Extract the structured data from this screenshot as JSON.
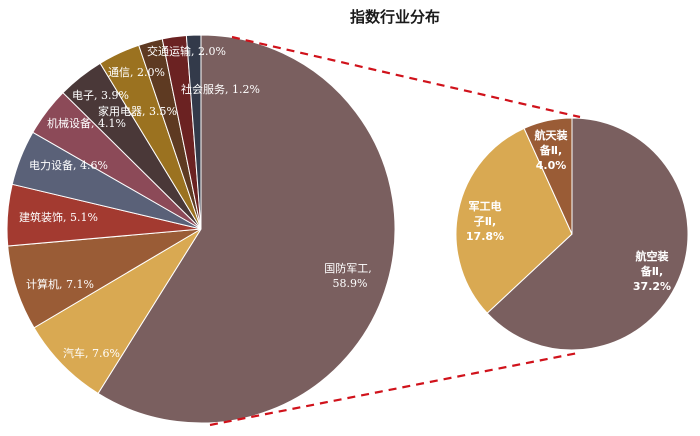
{
  "chart_data": {
    "type": "pie",
    "title": "指数行业分布",
    "main_pie": {
      "categories": [
        "国防军工",
        "汽车",
        "计算机",
        "建筑装饰",
        "电力设备",
        "机械设备",
        "电子",
        "家用电器",
        "通信",
        "交通运输",
        "社会服务"
      ],
      "values": [
        58.9,
        7.6,
        7.1,
        5.1,
        4.6,
        4.1,
        3.9,
        3.5,
        2.0,
        2.0,
        1.2
      ],
      "labels": [
        "国防军工,\n58.9%",
        "汽车, 7.6%",
        "计算机, 7.1%",
        "建筑装饰, 5.1%",
        "电力设备, 4.6%",
        "机械设备, 4.1%",
        "电子, 3.9%",
        "家用电器, 3.5%",
        "通信, 2.0%",
        "交通运输, 2.0%",
        "社会服务, 1.2%"
      ],
      "colors": [
        "#7a5f5f",
        "#d9a952",
        "#9a5c36",
        "#a33a30",
        "#5a6178",
        "#8c4a58",
        "#4a3838",
        "#9b7220",
        "#5e3a22",
        "#6b2222",
        "#333a4a"
      ]
    },
    "sub_pie": {
      "parent": "国防军工",
      "categories": [
        "航空装备Ⅱ",
        "军工电子Ⅱ",
        "航天装备Ⅱ"
      ],
      "values": [
        37.2,
        17.8,
        4.0
      ],
      "labels": [
        "航空装备Ⅱ, 37.2%",
        "军工电子Ⅱ, 17.8%",
        "航天装备Ⅱ, 4.0%"
      ],
      "colors": [
        "#7a5f5f",
        "#d9a952",
        "#9a5c36"
      ]
    },
    "connector_color": "#d0121b",
    "legend": "none"
  },
  "title": "指数行业分布",
  "labels": {
    "gfjg_1": "国防军工,",
    "gfjg_2": "58.9%",
    "qc": "汽车, 7.6%",
    "jsj": "计算机, 7.1%",
    "jzzs": "建筑装饰, 5.1%",
    "dlsb": "电力设备, 4.6%",
    "jxsb": "机械设备, 4.1%",
    "dz": "电子, 3.9%",
    "jydq": "家用电器, 3.5%",
    "tx": "通信, 2.0%",
    "jtys": "交通运输, 2.0%",
    "shfw": "社会服务, 1.2%",
    "hkzb_1": "航空装",
    "hkzb_2": "备Ⅱ,",
    "hkzb_3": "37.2%",
    "jgdz_1": "军工电",
    "jgdz_2": "子Ⅱ,",
    "jgdz_3": "17.8%",
    "htzb_1": "航天装",
    "htzb_2": "备Ⅱ,",
    "htzb_3": "4.0%"
  }
}
